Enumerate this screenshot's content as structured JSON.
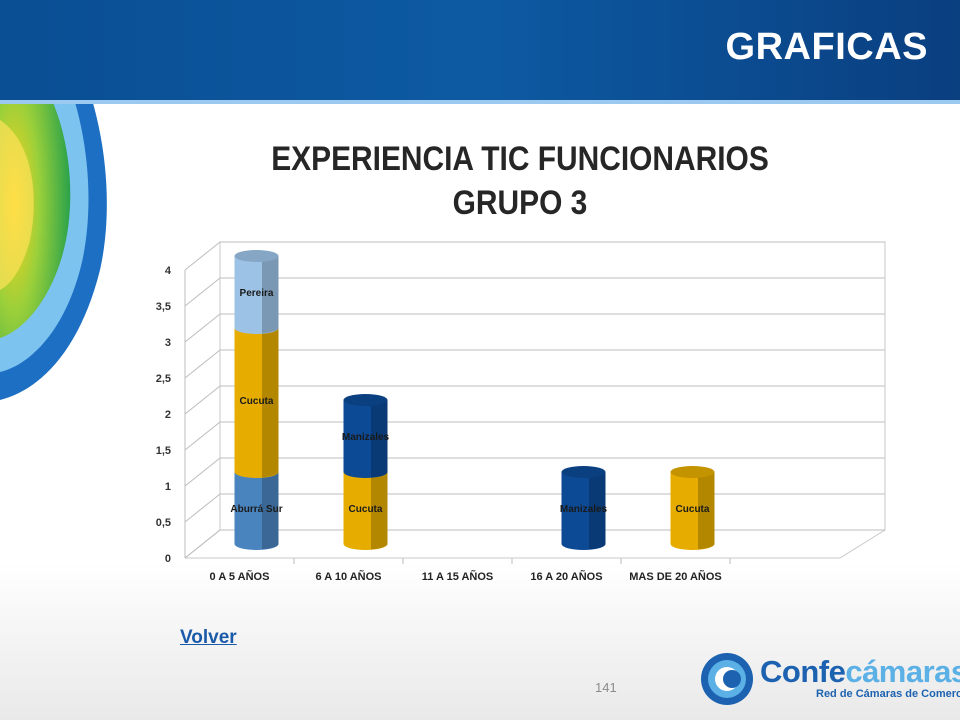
{
  "slide": {
    "header_title": "GRAFICAS",
    "link_label": "Volver",
    "page_number": "141",
    "logo": {
      "name_part1": "Confe",
      "name_part2": "cámaras",
      "tagline": "Red de Cámaras de Comercio"
    }
  },
  "chart_data": {
    "type": "bar",
    "stacked": true,
    "style": "3d-cylinder",
    "title": "EXPERIENCIA TIC FUNCIONARIOS",
    "subtitle": "GRUPO 3",
    "categories": [
      "0 A 5 AÑOS",
      "6  A 10 AÑOS",
      "11 A 15 AÑOS",
      "16 A  20 AÑOS",
      "MAS DE 20 AÑOS"
    ],
    "y_ticks": [
      "0",
      "0,5",
      "1",
      "1,5",
      "2",
      "2,5",
      "3",
      "3,5",
      "4"
    ],
    "ylim": [
      0,
      4
    ],
    "grid": true,
    "legend": "none",
    "stacks": [
      [
        {
          "label": "Aburrá Sur",
          "value": 1,
          "color": "#4a84bf"
        },
        {
          "label": "Cucuta",
          "value": 2,
          "color": "#e6ad00"
        },
        {
          "label": "Pereira",
          "value": 1,
          "color": "#9cc3e6"
        }
      ],
      [
        {
          "label": "Cucuta",
          "value": 1,
          "color": "#e6ad00"
        },
        {
          "label": "Manizales",
          "value": 1,
          "color": "#0c4a96"
        }
      ],
      [],
      [
        {
          "label": "Manizales",
          "value": 1,
          "color": "#0c4a96"
        }
      ],
      [
        {
          "label": "Cucuta",
          "value": 1,
          "color": "#e6ad00"
        }
      ]
    ]
  }
}
